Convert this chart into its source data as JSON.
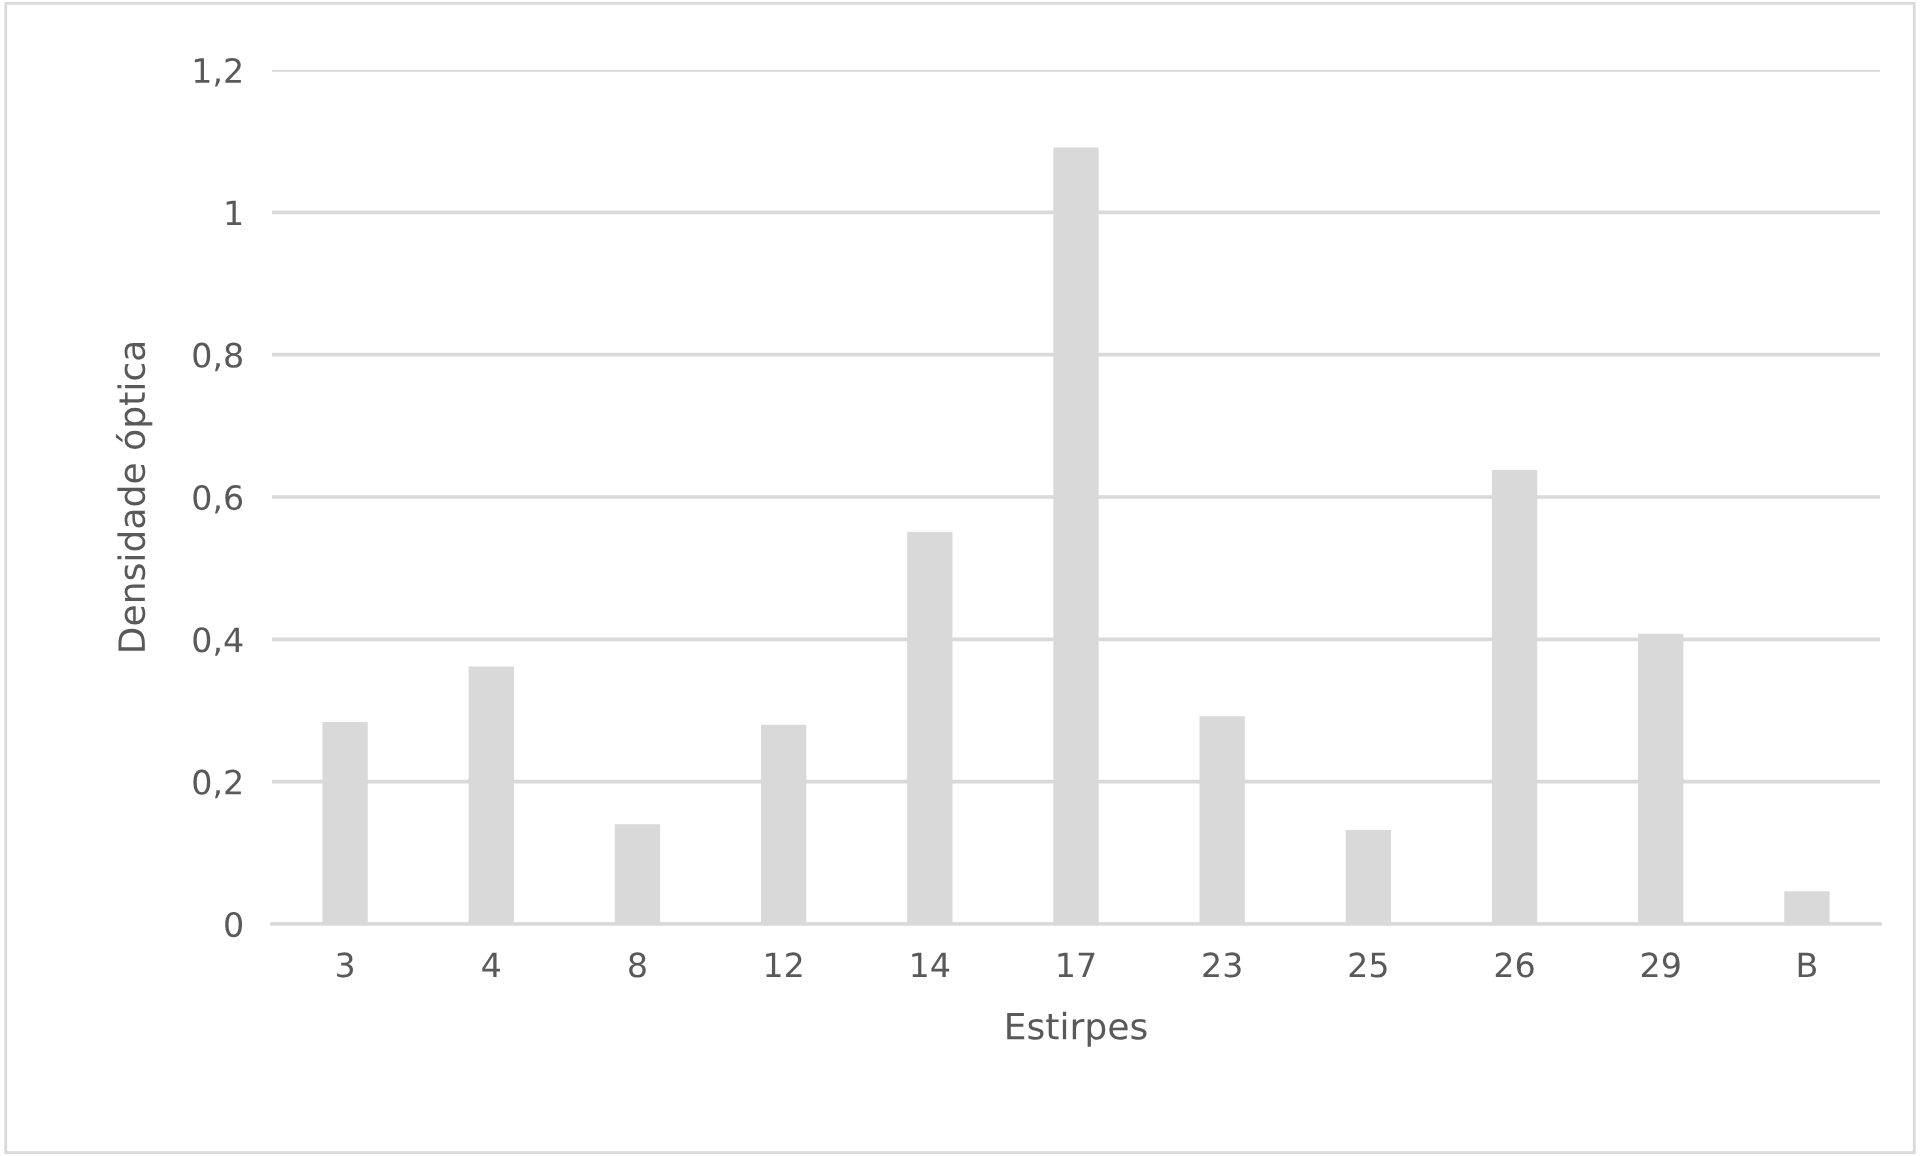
{
  "chart_data": {
    "type": "bar",
    "xlabel": "Estirpes",
    "ylabel": "Densidade óptica",
    "categories": [
      "3",
      "4",
      "8",
      "12",
      "14",
      "17",
      "23",
      "25",
      "26",
      "29",
      "B"
    ],
    "values": [
      0.284,
      0.362,
      0.14,
      0.28,
      0.551,
      1.091,
      0.292,
      0.132,
      0.638,
      0.408,
      0.046
    ],
    "color": "#d9d9d9",
    "ylim": [
      0,
      1.2
    ],
    "yticks": [
      0,
      {
        "value": 0.2,
        "label": "0,2"
      },
      {
        "value": 0.4,
        "label": "0,4"
      },
      {
        "value": 0.6,
        "label": "0,6"
      },
      {
        "value": 0.8,
        "label": "0,8"
      },
      1,
      {
        "value": 1.2,
        "label": "1,2"
      }
    ],
    "grid": "y",
    "legend": false
  }
}
